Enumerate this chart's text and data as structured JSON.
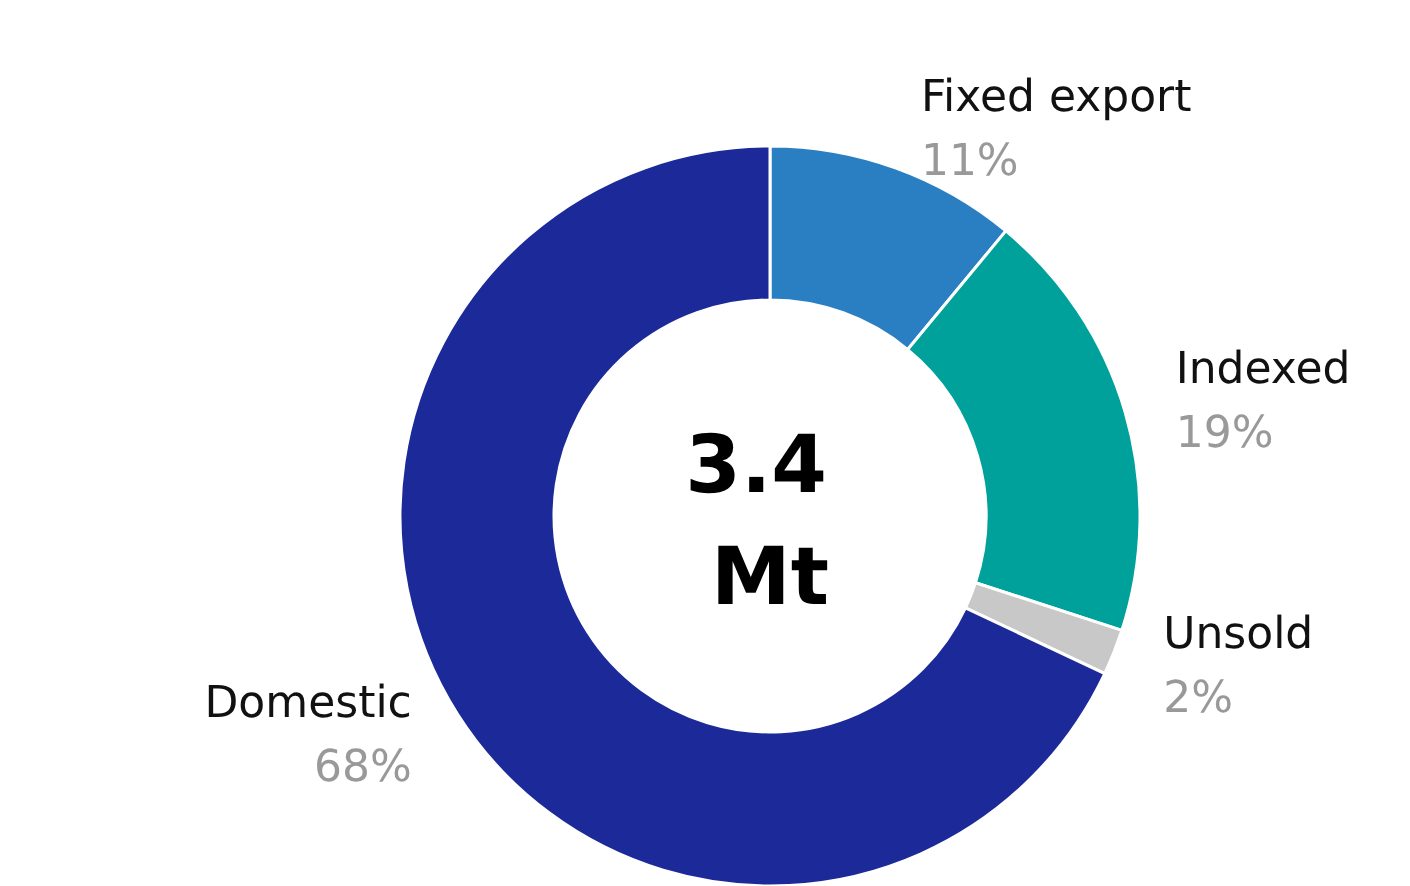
{
  "chart_data": {
    "type": "donut",
    "categories": [
      "Fixed export",
      "Indexed",
      "Unsold",
      "Domestic"
    ],
    "values": [
      11,
      19,
      2,
      68
    ],
    "colors": [
      "#2a7fc2",
      "#00a19a",
      "#c8c8c8",
      "#1b2a98"
    ],
    "value_labels": [
      "11%",
      "19%",
      "2%",
      "68%"
    ],
    "annotations": [
      "3.4 Mt"
    ],
    "legend": false
  }
}
